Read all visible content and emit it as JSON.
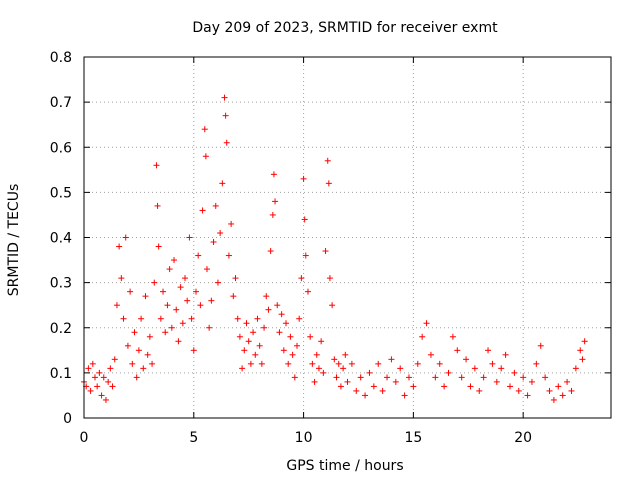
{
  "chart_data": {
    "type": "scatter",
    "title": "Day 209 of 2023, SRMTID for receiver exmt",
    "xlabel": "GPS time / hours",
    "ylabel": "SRMTID / TECUs",
    "xlim": [
      0,
      24
    ],
    "ylim": [
      0,
      0.8
    ],
    "x_ticks": [
      0,
      5,
      10,
      15,
      20
    ],
    "x_tick_labels": [
      "0",
      "5",
      "10",
      "15",
      "20"
    ],
    "y_ticks": [
      0,
      0.1,
      0.2,
      0.3,
      0.4,
      0.5,
      0.6,
      0.7,
      0.8
    ],
    "y_tick_labels": [
      "0",
      "0.1",
      "0.2",
      "0.3",
      "0.4",
      "0.5",
      "0.6",
      "0.7",
      "0.8"
    ],
    "grid": true,
    "marker": "+",
    "series": [
      {
        "name": "SRMTID",
        "color": "#ff0000",
        "points": [
          [
            0.0,
            0.08
          ],
          [
            0.1,
            0.07
          ],
          [
            0.2,
            0.11
          ],
          [
            0.3,
            0.06
          ],
          [
            0.4,
            0.12
          ],
          [
            0.5,
            0.09
          ],
          [
            0.6,
            0.07
          ],
          [
            0.7,
            0.1
          ],
          [
            0.8,
            0.05
          ],
          [
            0.9,
            0.09
          ],
          [
            1.0,
            0.04
          ],
          [
            1.1,
            0.08
          ],
          [
            1.2,
            0.11
          ],
          [
            1.3,
            0.07
          ],
          [
            1.4,
            0.13
          ],
          [
            1.5,
            0.25
          ],
          [
            1.6,
            0.38
          ],
          [
            1.7,
            0.31
          ],
          [
            1.8,
            0.22
          ],
          [
            1.9,
            0.4
          ],
          [
            2.0,
            0.16
          ],
          [
            2.1,
            0.28
          ],
          [
            2.2,
            0.12
          ],
          [
            2.3,
            0.19
          ],
          [
            2.4,
            0.09
          ],
          [
            2.5,
            0.15
          ],
          [
            2.6,
            0.22
          ],
          [
            2.7,
            0.11
          ],
          [
            2.8,
            0.27
          ],
          [
            2.9,
            0.14
          ],
          [
            3.0,
            0.18
          ],
          [
            3.1,
            0.12
          ],
          [
            3.2,
            0.3
          ],
          [
            3.3,
            0.56
          ],
          [
            3.35,
            0.47
          ],
          [
            3.4,
            0.38
          ],
          [
            3.5,
            0.22
          ],
          [
            3.6,
            0.28
          ],
          [
            3.7,
            0.19
          ],
          [
            3.8,
            0.25
          ],
          [
            3.9,
            0.33
          ],
          [
            4.0,
            0.2
          ],
          [
            4.1,
            0.35
          ],
          [
            4.2,
            0.24
          ],
          [
            4.3,
            0.17
          ],
          [
            4.4,
            0.29
          ],
          [
            4.5,
            0.21
          ],
          [
            4.6,
            0.31
          ],
          [
            4.7,
            0.26
          ],
          [
            4.8,
            0.4
          ],
          [
            4.9,
            0.22
          ],
          [
            5.0,
            0.15
          ],
          [
            5.1,
            0.28
          ],
          [
            5.2,
            0.36
          ],
          [
            5.3,
            0.25
          ],
          [
            5.4,
            0.46
          ],
          [
            5.5,
            0.64
          ],
          [
            5.55,
            0.58
          ],
          [
            5.6,
            0.33
          ],
          [
            5.7,
            0.2
          ],
          [
            5.8,
            0.26
          ],
          [
            5.9,
            0.39
          ],
          [
            6.0,
            0.47
          ],
          [
            6.1,
            0.3
          ],
          [
            6.2,
            0.41
          ],
          [
            6.3,
            0.52
          ],
          [
            6.4,
            0.71
          ],
          [
            6.45,
            0.67
          ],
          [
            6.5,
            0.61
          ],
          [
            6.6,
            0.36
          ],
          [
            6.7,
            0.43
          ],
          [
            6.8,
            0.27
          ],
          [
            6.9,
            0.31
          ],
          [
            7.0,
            0.22
          ],
          [
            7.1,
            0.18
          ],
          [
            7.2,
            0.11
          ],
          [
            7.3,
            0.15
          ],
          [
            7.4,
            0.21
          ],
          [
            7.5,
            0.17
          ],
          [
            7.6,
            0.12
          ],
          [
            7.7,
            0.19
          ],
          [
            7.8,
            0.14
          ],
          [
            7.9,
            0.22
          ],
          [
            8.0,
            0.16
          ],
          [
            8.1,
            0.12
          ],
          [
            8.2,
            0.2
          ],
          [
            8.3,
            0.27
          ],
          [
            8.4,
            0.24
          ],
          [
            8.5,
            0.37
          ],
          [
            8.6,
            0.45
          ],
          [
            8.65,
            0.54
          ],
          [
            8.7,
            0.48
          ],
          [
            8.8,
            0.25
          ],
          [
            8.9,
            0.19
          ],
          [
            9.0,
            0.23
          ],
          [
            9.1,
            0.15
          ],
          [
            9.2,
            0.21
          ],
          [
            9.3,
            0.12
          ],
          [
            9.4,
            0.18
          ],
          [
            9.5,
            0.14
          ],
          [
            9.6,
            0.09
          ],
          [
            9.7,
            0.16
          ],
          [
            9.8,
            0.22
          ],
          [
            9.9,
            0.31
          ],
          [
            10.0,
            0.53
          ],
          [
            10.05,
            0.44
          ],
          [
            10.1,
            0.36
          ],
          [
            10.2,
            0.28
          ],
          [
            10.3,
            0.18
          ],
          [
            10.4,
            0.12
          ],
          [
            10.5,
            0.08
          ],
          [
            10.6,
            0.14
          ],
          [
            10.7,
            0.11
          ],
          [
            10.8,
            0.17
          ],
          [
            10.9,
            0.1
          ],
          [
            11.0,
            0.37
          ],
          [
            11.1,
            0.57
          ],
          [
            11.15,
            0.52
          ],
          [
            11.2,
            0.31
          ],
          [
            11.3,
            0.25
          ],
          [
            11.4,
            0.13
          ],
          [
            11.5,
            0.09
          ],
          [
            11.6,
            0.12
          ],
          [
            11.7,
            0.07
          ],
          [
            11.8,
            0.11
          ],
          [
            11.9,
            0.14
          ],
          [
            12.0,
            0.08
          ],
          [
            12.2,
            0.12
          ],
          [
            12.4,
            0.06
          ],
          [
            12.6,
            0.09
          ],
          [
            12.8,
            0.05
          ],
          [
            13.0,
            0.1
          ],
          [
            13.2,
            0.07
          ],
          [
            13.4,
            0.12
          ],
          [
            13.6,
            0.06
          ],
          [
            13.8,
            0.09
          ],
          [
            14.0,
            0.13
          ],
          [
            14.2,
            0.08
          ],
          [
            14.4,
            0.11
          ],
          [
            14.6,
            0.05
          ],
          [
            14.8,
            0.09
          ],
          [
            15.0,
            0.07
          ],
          [
            15.2,
            0.12
          ],
          [
            15.4,
            0.18
          ],
          [
            15.6,
            0.21
          ],
          [
            15.8,
            0.14
          ],
          [
            16.0,
            0.09
          ],
          [
            16.2,
            0.12
          ],
          [
            16.4,
            0.07
          ],
          [
            16.6,
            0.1
          ],
          [
            16.8,
            0.18
          ],
          [
            17.0,
            0.15
          ],
          [
            17.2,
            0.09
          ],
          [
            17.4,
            0.13
          ],
          [
            17.6,
            0.07
          ],
          [
            17.8,
            0.11
          ],
          [
            18.0,
            0.06
          ],
          [
            18.2,
            0.09
          ],
          [
            18.4,
            0.15
          ],
          [
            18.6,
            0.12
          ],
          [
            18.8,
            0.08
          ],
          [
            19.0,
            0.11
          ],
          [
            19.2,
            0.14
          ],
          [
            19.4,
            0.07
          ],
          [
            19.6,
            0.1
          ],
          [
            19.8,
            0.06
          ],
          [
            20.0,
            0.09
          ],
          [
            20.2,
            0.05
          ],
          [
            20.4,
            0.08
          ],
          [
            20.6,
            0.12
          ],
          [
            20.8,
            0.16
          ],
          [
            21.0,
            0.09
          ],
          [
            21.2,
            0.06
          ],
          [
            21.4,
            0.04
          ],
          [
            21.6,
            0.07
          ],
          [
            21.8,
            0.05
          ],
          [
            22.0,
            0.08
          ],
          [
            22.2,
            0.06
          ],
          [
            22.4,
            0.11
          ],
          [
            22.6,
            0.15
          ],
          [
            22.7,
            0.13
          ],
          [
            22.8,
            0.17
          ]
        ]
      }
    ]
  }
}
